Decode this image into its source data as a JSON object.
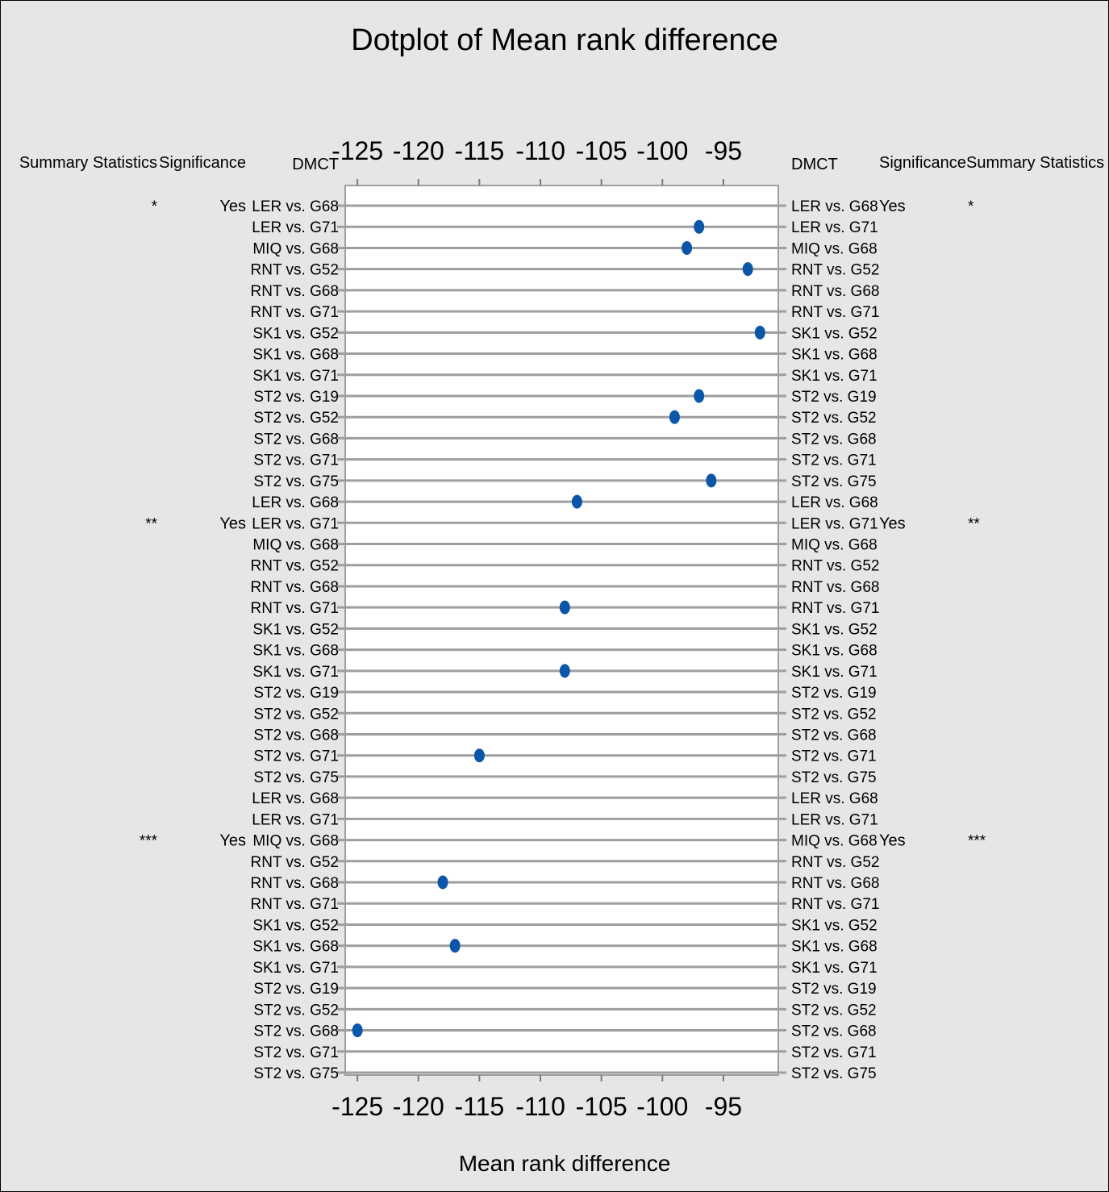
{
  "chart_data": {
    "type": "scatter",
    "title": "Dotplot of Mean rank difference",
    "xlabel": "Mean rank difference",
    "xlim": [
      -126,
      -90.5
    ],
    "xticks": [
      -125,
      -120,
      -115,
      -110,
      -105,
      -100,
      -95
    ],
    "left_headers": {
      "summary": "Summary Statistics",
      "significance": "Significance",
      "dmct": "DMCT"
    },
    "right_headers": {
      "dmct": "DMCT",
      "significance": "Significance",
      "summary": "Summary Statistics"
    },
    "groups": [
      {
        "summary": "*",
        "significance": "Yes",
        "row_index": 0
      },
      {
        "summary": "**",
        "significance": "Yes",
        "row_index": 15
      },
      {
        "summary": "***",
        "significance": "Yes",
        "row_index": 30
      }
    ],
    "rows": [
      {
        "label": "LER vs. G68",
        "value": null
      },
      {
        "label": "LER vs. G71",
        "value": -97
      },
      {
        "label": "MIQ vs. G68",
        "value": -98
      },
      {
        "label": "RNT vs. G52",
        "value": -93
      },
      {
        "label": "RNT vs. G68",
        "value": null
      },
      {
        "label": "RNT vs. G71",
        "value": null
      },
      {
        "label": "SK1 vs. G52",
        "value": -92
      },
      {
        "label": "SK1 vs. G68",
        "value": null
      },
      {
        "label": "SK1 vs. G71",
        "value": null
      },
      {
        "label": "ST2 vs. G19",
        "value": -97
      },
      {
        "label": "ST2 vs. G52",
        "value": -99
      },
      {
        "label": "ST2 vs. G68",
        "value": null
      },
      {
        "label": "ST2 vs. G71",
        "value": null
      },
      {
        "label": "ST2 vs. G75",
        "value": -96
      },
      {
        "label": "LER vs. G68",
        "value": -107
      },
      {
        "label": "LER vs. G71",
        "value": null
      },
      {
        "label": "MIQ vs. G68",
        "value": null
      },
      {
        "label": "RNT vs. G52",
        "value": null
      },
      {
        "label": "RNT vs. G68",
        "value": null
      },
      {
        "label": "RNT vs. G71",
        "value": -108
      },
      {
        "label": "SK1 vs. G52",
        "value": null
      },
      {
        "label": "SK1 vs. G68",
        "value": null
      },
      {
        "label": "SK1 vs. G71",
        "value": -108
      },
      {
        "label": "ST2 vs. G19",
        "value": null
      },
      {
        "label": "ST2 vs. G52",
        "value": null
      },
      {
        "label": "ST2 vs. G68",
        "value": null
      },
      {
        "label": "ST2 vs. G71",
        "value": -115
      },
      {
        "label": "ST2 vs. G75",
        "value": null
      },
      {
        "label": "LER vs. G68",
        "value": null
      },
      {
        "label": "LER vs. G71",
        "value": null
      },
      {
        "label": "MIQ vs. G68",
        "value": null
      },
      {
        "label": "RNT vs. G52",
        "value": null
      },
      {
        "label": "RNT vs. G68",
        "value": -118
      },
      {
        "label": "RNT vs. G71",
        "value": null
      },
      {
        "label": "SK1 vs. G52",
        "value": null
      },
      {
        "label": "SK1 vs. G68",
        "value": -117
      },
      {
        "label": "SK1 vs. G71",
        "value": null
      },
      {
        "label": "ST2 vs. G19",
        "value": null
      },
      {
        "label": "ST2 vs. G52",
        "value": null
      },
      {
        "label": "ST2 vs. G68",
        "value": -125
      },
      {
        "label": "ST2 vs. G71",
        "value": null
      },
      {
        "label": "ST2 vs. G75",
        "value": null
      }
    ],
    "colors": {
      "background": "#e6e6e6",
      "plot": "#ffffff",
      "gridline": "#9e9e9e",
      "dot": "#0b56a8"
    }
  }
}
